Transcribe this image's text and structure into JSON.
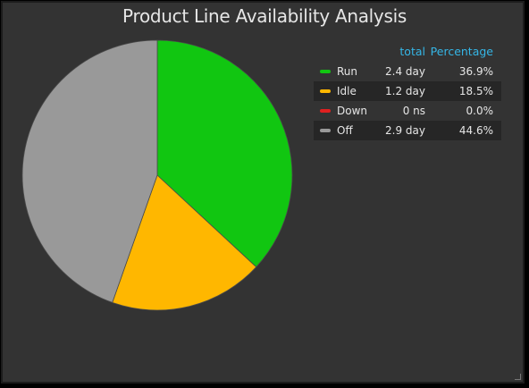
{
  "chart_data": {
    "type": "pie",
    "title": "Product Line Availability Analysis",
    "columns": {
      "total": "total",
      "percentage": "Percentage"
    },
    "slices": [
      {
        "name": "Run",
        "total": "2.4 day",
        "percentage": "36.9%",
        "value": 36.9,
        "color": "#11c611"
      },
      {
        "name": "Idle",
        "total": "1.2 day",
        "percentage": "18.5%",
        "value": 18.5,
        "color": "#ffb700"
      },
      {
        "name": "Down",
        "total": "0 ns",
        "percentage": "0.0%",
        "value": 0.0,
        "color": "#e02020"
      },
      {
        "name": "Off",
        "total": "2.9 day",
        "percentage": "44.6%",
        "value": 44.6,
        "color": "#999999"
      }
    ],
    "legend_position": "top-right"
  }
}
